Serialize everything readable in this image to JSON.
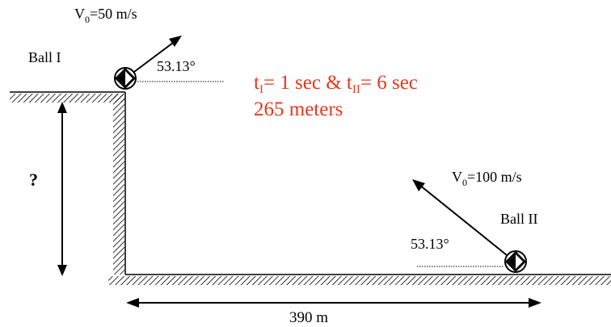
{
  "ball1": {
    "name": "Ball  I",
    "v0_prefix": "V",
    "v0_sub": "0",
    "v0_value": "=50 m/s",
    "angle": "53.13°"
  },
  "ball2": {
    "name": "Ball  II",
    "v0_prefix": "V",
    "v0_sub": "0",
    "v0_value": "=100 m/s",
    "angle": "53.13°"
  },
  "height_label": "?",
  "distance_label": "390 m",
  "answer": {
    "t1_prefix": "t",
    "t1_sub": "I",
    "t1_value": "= 1 sec & t",
    "t2_sub": "II",
    "t2_value": "= 6 sec",
    "distance": "265 meters",
    "color": "#e8371c"
  }
}
